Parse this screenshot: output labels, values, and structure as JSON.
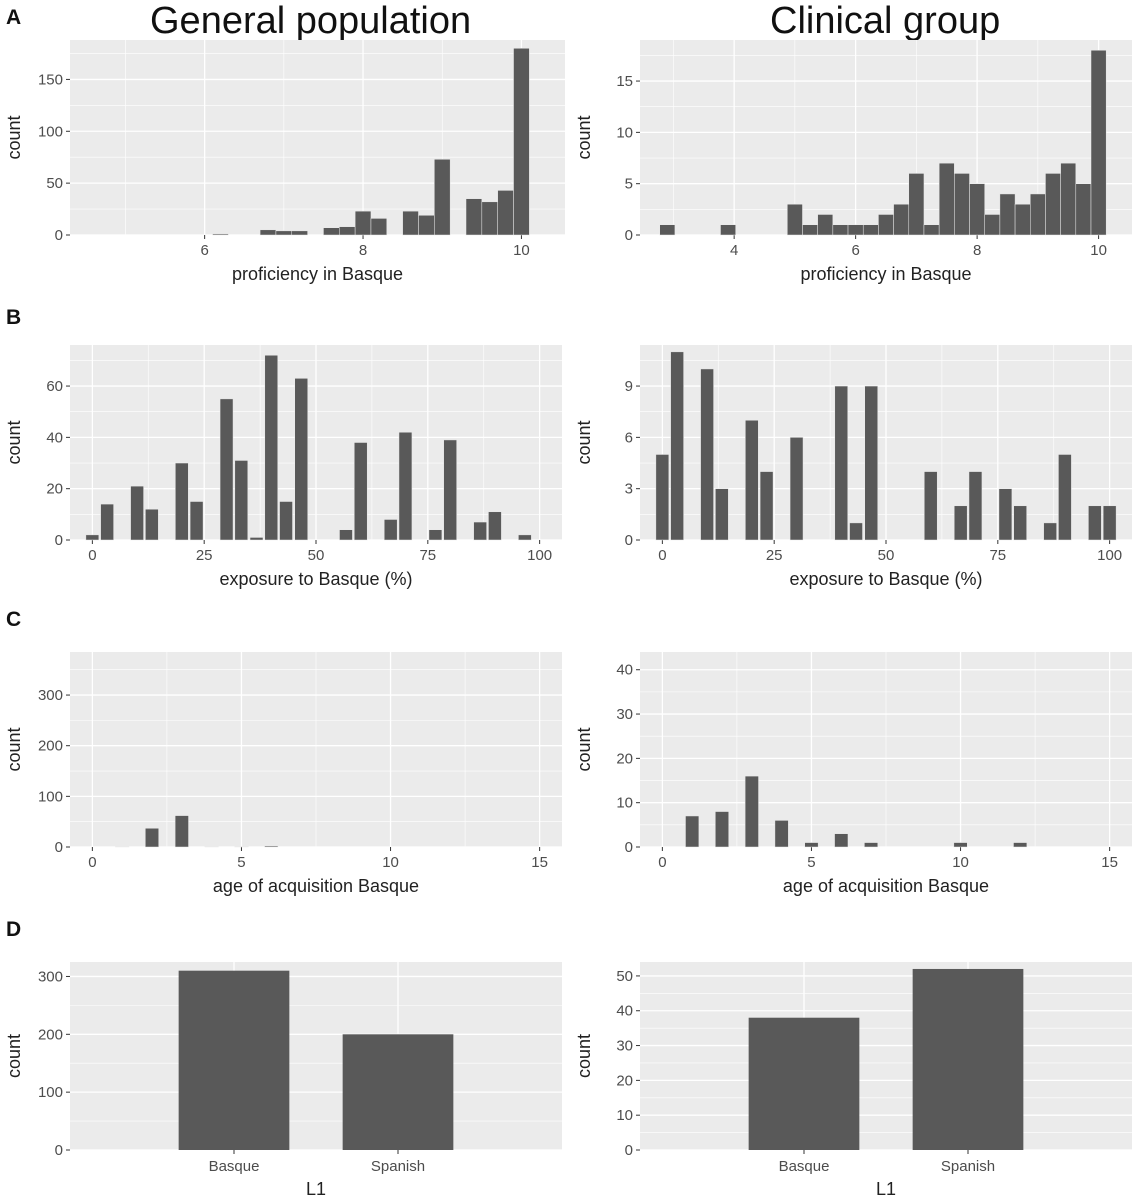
{
  "column_titles": [
    "General population",
    "Clinical group"
  ],
  "panel_letters": [
    "A",
    "B",
    "C",
    "D"
  ],
  "chart_data": [
    {
      "type": "bar",
      "panel": "A",
      "column": "General population",
      "xlabel": "proficiency in Basque",
      "ylabel": "count",
      "xlim": [
        4.3,
        10.55
      ],
      "ylim": [
        0,
        188
      ],
      "xticks": [
        6,
        8,
        10
      ],
      "yticks": [
        0,
        50,
        100,
        150
      ],
      "bin_width": 0.2,
      "x": [
        6.2,
        6.8,
        7.0,
        7.2,
        7.6,
        7.8,
        8.0,
        8.2,
        8.6,
        8.8,
        9.0,
        9.4,
        9.6,
        9.8,
        10.0
      ],
      "values": [
        1,
        5,
        4,
        4,
        7,
        8,
        23,
        16,
        23,
        19,
        73,
        35,
        32,
        43,
        180
      ]
    },
    {
      "type": "bar",
      "panel": "A",
      "column": "Clinical group",
      "xlabel": "proficiency in Basque",
      "ylabel": "count",
      "xlim": [
        2.45,
        10.55
      ],
      "ylim": [
        0,
        19
      ],
      "xticks": [
        4,
        6,
        8,
        10
      ],
      "yticks": [
        0,
        5,
        10,
        15
      ],
      "bin_width": 0.25,
      "x": [
        2.9,
        3.9,
        5.0,
        5.25,
        5.5,
        5.75,
        6.0,
        6.25,
        6.5,
        6.75,
        7.0,
        7.25,
        7.5,
        7.75,
        8.0,
        8.25,
        8.5,
        8.75,
        9.0,
        9.25,
        9.5,
        9.75,
        10.0
      ],
      "values": [
        1,
        1,
        3,
        1,
        2,
        1,
        1,
        1,
        2,
        3,
        6,
        1,
        7,
        6,
        5,
        2,
        4,
        3,
        4,
        6,
        7,
        5,
        18
      ]
    },
    {
      "type": "bar",
      "panel": "B",
      "column": "General population",
      "xlabel": "exposure to Basque (%)",
      "ylabel": "count",
      "xlim": [
        -5,
        105
      ],
      "ylim": [
        0,
        76
      ],
      "xticks": [
        0,
        25,
        50,
        75,
        100
      ],
      "yticks": [
        0,
        20,
        40,
        60
      ],
      "bin_width": 2.9,
      "x": [
        0,
        3.3,
        10,
        13.3,
        20,
        23.3,
        30,
        33.3,
        36.7,
        40,
        43.3,
        46.7,
        56.7,
        60,
        66.7,
        70,
        76.7,
        80,
        86.7,
        90,
        96.7
      ],
      "values": [
        2,
        14,
        21,
        12,
        30,
        15,
        55,
        31,
        1,
        72,
        15,
        63,
        4,
        38,
        8,
        42,
        4,
        39,
        7,
        11,
        2
      ]
    },
    {
      "type": "bar",
      "panel": "B",
      "column": "Clinical group",
      "xlabel": "exposure to Basque (%)",
      "ylabel": "count",
      "xlim": [
        -5,
        105
      ],
      "ylim": [
        0,
        11.4
      ],
      "xticks": [
        0,
        25,
        50,
        75,
        100
      ],
      "yticks": [
        0,
        3,
        6,
        9
      ],
      "bin_width": 2.9,
      "x": [
        0,
        3.3,
        10,
        13.3,
        20,
        23.3,
        30,
        40,
        43.3,
        46.7,
        60,
        66.7,
        70,
        76.7,
        80,
        86.7,
        90,
        96.7,
        100
      ],
      "values": [
        5,
        11,
        10,
        3,
        7,
        4,
        6,
        9,
        1,
        9,
        4,
        2,
        4,
        3,
        2,
        1,
        5,
        2,
        2
      ]
    },
    {
      "type": "bar",
      "panel": "C",
      "column": "General population",
      "xlabel": "age of acquisition Basque",
      "ylabel": "count",
      "xlim": [
        -0.75,
        15.75
      ],
      "ylim": [
        0,
        385
      ],
      "xticks": [
        0,
        5,
        10,
        15
      ],
      "yticks": [
        0,
        100,
        200,
        300
      ],
      "bin_width": 0.45,
      "x": [
        1,
        2,
        3,
        4,
        5,
        6
      ],
      "values": [
        1,
        37,
        62,
        1,
        1,
        2
      ]
    },
    {
      "type": "bar",
      "panel": "C",
      "column": "Clinical group",
      "xlabel": "age of acquisition Basque",
      "ylabel": "count",
      "xlim": [
        -0.75,
        15.75
      ],
      "ylim": [
        0,
        44
      ],
      "xticks": [
        0,
        5,
        10,
        15
      ],
      "yticks": [
        0,
        10,
        20,
        30,
        40
      ],
      "bin_width": 0.45,
      "x": [
        1,
        2,
        3,
        4,
        5,
        6,
        7,
        10,
        12
      ],
      "values": [
        7,
        8,
        16,
        6,
        1,
        3,
        1,
        1,
        1
      ]
    },
    {
      "type": "bar",
      "panel": "D",
      "column": "General population",
      "xlabel": "L1",
      "ylabel": "count",
      "categories": [
        "Basque",
        "Spanish"
      ],
      "values": [
        310,
        200
      ],
      "ylim": [
        0,
        325
      ],
      "yticks": [
        0,
        100,
        200,
        300
      ]
    },
    {
      "type": "bar",
      "panel": "D",
      "column": "Clinical group",
      "xlabel": "L1",
      "ylabel": "count",
      "categories": [
        "Basque",
        "Spanish"
      ],
      "values": [
        38,
        52
      ],
      "ylim": [
        0,
        54
      ],
      "yticks": [
        0,
        10,
        20,
        30,
        40,
        50
      ]
    }
  ],
  "colors": {
    "panel_bg": "#ebebeb",
    "grid": "#ffffff",
    "bar": "#595959",
    "text": "#4d4d4d"
  }
}
